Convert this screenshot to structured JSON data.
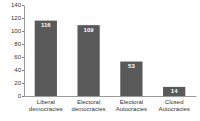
{
  "chart_data": {
    "type": "bar",
    "categories": [
      "Liberal democracies",
      "Electoral democracies",
      "Electoral Autocracies",
      "Closed Autocracies"
    ],
    "values": [
      116,
      109,
      53,
      14
    ],
    "color": "#595959",
    "ylim": [
      0,
      140
    ],
    "yticks": [
      0,
      20,
      40,
      60,
      80,
      100,
      120,
      140
    ],
    "grid": false,
    "data_labels": true
  }
}
